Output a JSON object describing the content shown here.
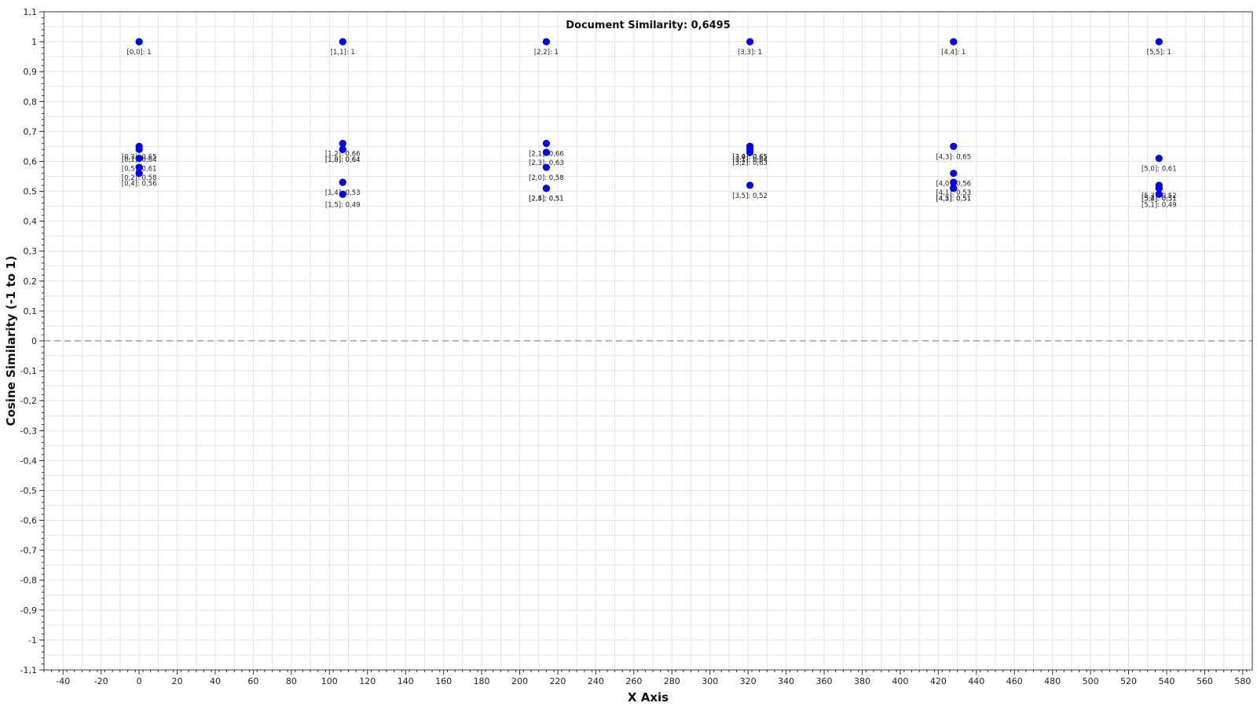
{
  "chart_data": {
    "type": "scatter",
    "title": "Document Similarity: 0,6495",
    "xlabel": "X Axis",
    "ylabel": "Cosine Similarity (-1 to 1)",
    "xlim": [
      -50,
      585
    ],
    "ylim": [
      -1.1,
      1.1
    ],
    "x_ticks": [
      -40,
      -20,
      0,
      20,
      40,
      60,
      80,
      100,
      120,
      140,
      160,
      180,
      200,
      220,
      240,
      260,
      280,
      300,
      320,
      340,
      360,
      380,
      400,
      420,
      440,
      460,
      480,
      500,
      520,
      540,
      560,
      580
    ],
    "y_ticks": [
      -1.1,
      -1,
      -0.9,
      -0.8,
      -0.7,
      -0.6,
      -0.5,
      -0.4,
      -0.3,
      -0.2,
      -0.1,
      0,
      0.1,
      0.2,
      0.3,
      0.4,
      0.5,
      0.6,
      0.7,
      0.8,
      0.9,
      1,
      1.1
    ],
    "decimal_separator": ",",
    "grid": true,
    "zero_line": "dashed",
    "marker_color": "#0000ff",
    "zero_line_color": "#a0a0a0",
    "grid_color": "#e3e3e3",
    "points": [
      {
        "x": 0,
        "y": 1,
        "label": "[0,0]: 1"
      },
      {
        "x": 0,
        "y": 0.65,
        "label": "[0,3]: 0,65"
      },
      {
        "x": 0,
        "y": 0.64,
        "label": "[0,1]: 0,64"
      },
      {
        "x": 0,
        "y": 0.61,
        "label": "[0,5]: 0,61"
      },
      {
        "x": 0,
        "y": 0.58,
        "label": "[0,2]: 0,58"
      },
      {
        "x": 0,
        "y": 0.56,
        "label": "[0,4]: 0,56"
      },
      {
        "x": 107,
        "y": 1,
        "label": "[1,1]: 1"
      },
      {
        "x": 107,
        "y": 0.66,
        "label": "[1,2]: 0,66"
      },
      {
        "x": 107,
        "y": 0.64,
        "label": "[1,3]: 0,64"
      },
      {
        "x": 107,
        "y": 0.64,
        "label": "[1,0]: 0,64"
      },
      {
        "x": 107,
        "y": 0.53,
        "label": "[1,4]: 0,53"
      },
      {
        "x": 107,
        "y": 0.49,
        "label": "[1,5]: 0,49"
      },
      {
        "x": 214,
        "y": 1,
        "label": "[2,2]: 1"
      },
      {
        "x": 214,
        "y": 0.66,
        "label": "[2,1]: 0,66"
      },
      {
        "x": 214,
        "y": 0.63,
        "label": "[2,3]: 0,63"
      },
      {
        "x": 214,
        "y": 0.58,
        "label": "[2,0]: 0,58"
      },
      {
        "x": 214,
        "y": 0.51,
        "label": "[2,4]: 0,51"
      },
      {
        "x": 214,
        "y": 0.51,
        "label": "[2,5]: 0,51"
      },
      {
        "x": 321,
        "y": 1,
        "label": "[3,3]: 1"
      },
      {
        "x": 321,
        "y": 0.65,
        "label": "[3,4]: 0,65"
      },
      {
        "x": 321,
        "y": 0.65,
        "label": "[3,0]: 0,65"
      },
      {
        "x": 321,
        "y": 0.64,
        "label": "[3,1]: 0,64"
      },
      {
        "x": 321,
        "y": 0.63,
        "label": "[3,2]: 0,63"
      },
      {
        "x": 321,
        "y": 0.52,
        "label": "[3,5]: 0,52"
      },
      {
        "x": 428,
        "y": 1,
        "label": "[4,4]: 1"
      },
      {
        "x": 428,
        "y": 0.65,
        "label": "[4,3]: 0,65"
      },
      {
        "x": 428,
        "y": 0.56,
        "label": "[4,0]: 0,56"
      },
      {
        "x": 428,
        "y": 0.53,
        "label": "[4,1]: 0,53"
      },
      {
        "x": 428,
        "y": 0.51,
        "label": "[4,2]: 0,51"
      },
      {
        "x": 428,
        "y": 0.51,
        "label": "[4,5]: 0,51"
      },
      {
        "x": 536,
        "y": 1,
        "label": "[5,5]: 1"
      },
      {
        "x": 536,
        "y": 0.61,
        "label": "[5,0]: 0,61"
      },
      {
        "x": 536,
        "y": 0.52,
        "label": "[5,3]: 0,52"
      },
      {
        "x": 536,
        "y": 0.51,
        "label": "[5,2]: 0,51"
      },
      {
        "x": 536,
        "y": 0.51,
        "label": "[5,4]: 0,51"
      },
      {
        "x": 536,
        "y": 0.49,
        "label": "[5,1]: 0,49"
      }
    ]
  }
}
